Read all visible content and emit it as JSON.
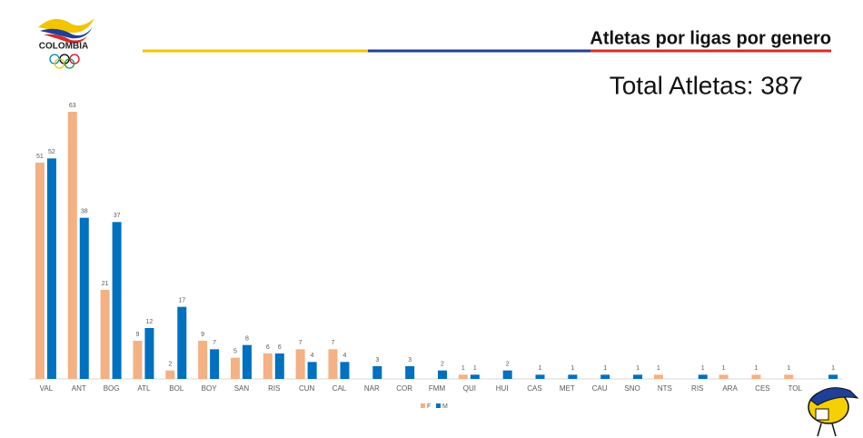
{
  "logo": {
    "text": "COLOMBIA"
  },
  "chart_data": {
    "type": "bar",
    "title": "Atletas por ligas por genero",
    "annotation": "Total Atletas: 387",
    "categories": [
      "VAL",
      "ANT",
      "BOG",
      "ATL",
      "BOL",
      "BOY",
      "SAN",
      "RIS",
      "CUN",
      "CAL",
      "NAR",
      "COR",
      "FMM",
      "QUI",
      "HUI",
      "CAS",
      "MET",
      "CAU",
      "SNO",
      "NTS",
      "RIS",
      "ARA",
      "CES",
      "TOL",
      null
    ],
    "series": [
      {
        "name": "F",
        "color": "#f4b183",
        "values": [
          51,
          63,
          21,
          9,
          2,
          9,
          5,
          6,
          7,
          7,
          null,
          null,
          null,
          1,
          null,
          null,
          null,
          null,
          null,
          1,
          null,
          1,
          1,
          1,
          null
        ]
      },
      {
        "name": "M",
        "color": "#0070c0",
        "values": [
          52,
          38,
          37,
          12,
          17,
          7,
          8,
          6,
          4,
          4,
          3,
          3,
          2,
          1,
          2,
          1,
          1,
          1,
          1,
          null,
          1,
          null,
          null,
          null,
          1
        ]
      }
    ],
    "legend": "bottom"
  }
}
